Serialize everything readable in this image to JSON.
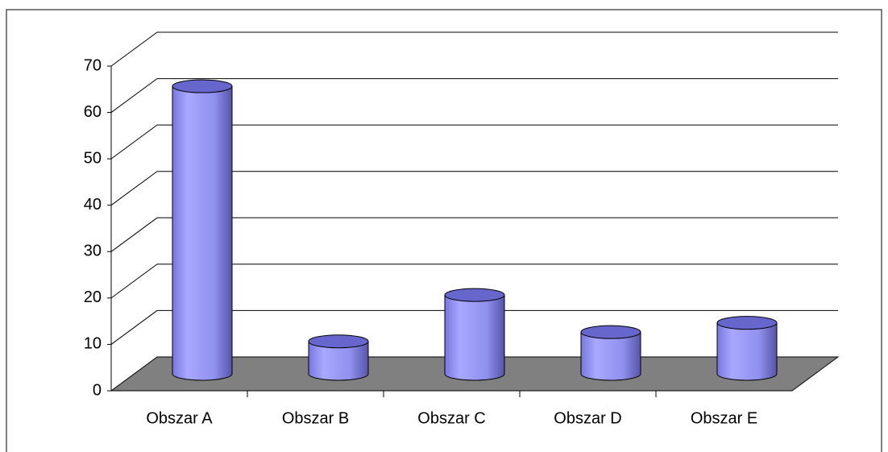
{
  "chart_data": {
    "type": "bar",
    "categories": [
      "Obszar A",
      "Obszar B",
      "Obszar C",
      "Obszar D",
      "Obszar E"
    ],
    "values": [
      62,
      7,
      17,
      9,
      11
    ],
    "color": "#9999ff",
    "ylim": [
      0,
      70
    ],
    "yticks": [
      0,
      10,
      20,
      30,
      40,
      50,
      60,
      70
    ],
    "grid": true
  }
}
